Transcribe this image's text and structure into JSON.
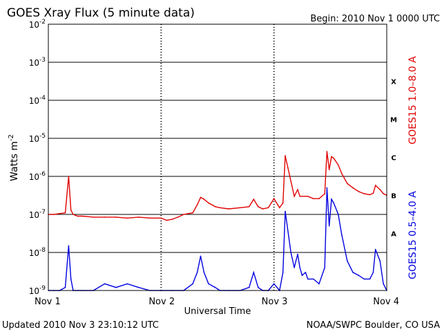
{
  "header": {
    "title": "GOES Xray Flux (5 minute data)",
    "begin": "Begin:  2010 Nov 1 0000 UTC"
  },
  "footer": {
    "updated": "Updated 2010 Nov  3 23:10:12 UTC",
    "credit": "NOAA/SWPC Boulder, CO USA"
  },
  "colors": {
    "long_channel": "#e00000",
    "short_channel": "#0000e0",
    "grid": "#000000",
    "background": "#ffffff"
  },
  "chart_data": {
    "type": "line",
    "title": "GOES Xray Flux (5 minute data)",
    "xlabel": "Universal Time",
    "ylabel": "Watts m",
    "ylabel_sup": "-2",
    "y_scale": "log",
    "ylim": [
      1e-09,
      0.01
    ],
    "xlim": [
      0,
      3
    ],
    "x_ticks": [
      {
        "value": 0,
        "label": "Nov 1"
      },
      {
        "value": 1,
        "label": "Nov 2"
      },
      {
        "value": 2,
        "label": "Nov 3"
      },
      {
        "value": 3,
        "label": "Nov 4"
      }
    ],
    "y_ticks": [
      {
        "exp": -2,
        "base": "10",
        "sup": "-2"
      },
      {
        "exp": -3,
        "base": "10",
        "sup": "-3"
      },
      {
        "exp": -4,
        "base": "10",
        "sup": "-4"
      },
      {
        "exp": -5,
        "base": "10",
        "sup": "-5"
      },
      {
        "exp": -6,
        "base": "10",
        "sup": "-6"
      },
      {
        "exp": -7,
        "base": "10",
        "sup": "-7"
      },
      {
        "exp": -8,
        "base": "10",
        "sup": "-8"
      },
      {
        "exp": -9,
        "base": "10",
        "sup": "-9"
      }
    ],
    "flare_classes": [
      {
        "label": "X",
        "exp": -3.5
      },
      {
        "label": "M",
        "exp": -4.5
      },
      {
        "label": "C",
        "exp": -5.5
      },
      {
        "label": "B",
        "exp": -6.5
      },
      {
        "label": "A",
        "exp": -7.5
      }
    ],
    "grid": true,
    "series": [
      {
        "name": "GOES15 1.0–8.0 A",
        "color": "#e00000",
        "x": [
          0,
          0.05,
          0.1,
          0.15,
          0.18,
          0.2,
          0.22,
          0.26,
          0.3,
          0.4,
          0.5,
          0.6,
          0.7,
          0.8,
          0.9,
          1.0,
          1.05,
          1.1,
          1.15,
          1.2,
          1.28,
          1.32,
          1.35,
          1.38,
          1.42,
          1.48,
          1.52,
          1.6,
          1.7,
          1.78,
          1.82,
          1.86,
          1.9,
          1.95,
          2.0,
          2.05,
          2.08,
          2.1,
          2.15,
          2.18,
          2.21,
          2.23,
          2.25,
          2.28,
          2.3,
          2.35,
          2.4,
          2.45,
          2.47,
          2.49,
          2.51,
          2.53,
          2.57,
          2.6,
          2.65,
          2.7,
          2.75,
          2.8,
          2.85,
          2.88,
          2.9,
          2.94,
          2.97,
          3.0
        ],
        "values": [
          1e-07,
          1e-07,
          1.05e-07,
          1.1e-07,
          1e-06,
          1.3e-07,
          1e-07,
          9e-08,
          9e-08,
          8.5e-08,
          8.5e-08,
          8.5e-08,
          8e-08,
          8.5e-08,
          8e-08,
          8e-08,
          7e-08,
          7.5e-08,
          8.5e-08,
          1e-07,
          1.1e-07,
          1.8e-07,
          2.8e-07,
          2.5e-07,
          2e-07,
          1.6e-07,
          1.5e-07,
          1.4e-07,
          1.5e-07,
          1.6e-07,
          2.5e-07,
          1.6e-07,
          1.4e-07,
          1.5e-07,
          2.6e-07,
          1.5e-07,
          2e-07,
          3.5e-06,
          7.5e-07,
          3e-07,
          4.5e-07,
          3e-07,
          3e-07,
          3e-07,
          3e-07,
          2.6e-07,
          2.6e-07,
          3.5e-07,
          4.5e-06,
          1.5e-06,
          3.3e-06,
          3e-06,
          2e-06,
          1.2e-06,
          6.5e-07,
          5e-07,
          4e-07,
          3.5e-07,
          3.3e-07,
          3.6e-07,
          5.8e-07,
          4.5e-07,
          3.5e-07,
          3.2e-07
        ]
      },
      {
        "name": "GOES15 0.5–4.0 A",
        "color": "#0000e0",
        "x": [
          0,
          0.05,
          0.1,
          0.15,
          0.18,
          0.2,
          0.22,
          0.26,
          0.3,
          0.4,
          0.5,
          0.6,
          0.7,
          0.8,
          0.9,
          1.0,
          1.1,
          1.2,
          1.28,
          1.32,
          1.35,
          1.38,
          1.42,
          1.48,
          1.52,
          1.6,
          1.7,
          1.78,
          1.82,
          1.86,
          1.9,
          1.95,
          2.0,
          2.05,
          2.08,
          2.1,
          2.15,
          2.18,
          2.21,
          2.23,
          2.25,
          2.28,
          2.3,
          2.35,
          2.4,
          2.45,
          2.47,
          2.49,
          2.51,
          2.53,
          2.57,
          2.6,
          2.65,
          2.7,
          2.75,
          2.8,
          2.85,
          2.88,
          2.9,
          2.94,
          2.97,
          3.0
        ],
        "values": [
          1e-09,
          1e-09,
          1e-09,
          1.2e-09,
          1.5e-08,
          2e-09,
          1e-09,
          1e-09,
          1e-09,
          1e-09,
          1.5e-09,
          1.2e-09,
          1.5e-09,
          1.2e-09,
          1e-09,
          1e-09,
          1e-09,
          1e-09,
          1.5e-09,
          3e-09,
          8e-09,
          3e-09,
          1.5e-09,
          1.2e-09,
          1e-09,
          1e-09,
          1e-09,
          1.2e-09,
          3e-09,
          1.2e-09,
          1e-09,
          1e-09,
          1.5e-09,
          1e-09,
          3e-09,
          1.2e-07,
          1e-08,
          4e-09,
          9e-09,
          4e-09,
          2.5e-09,
          3e-09,
          2e-09,
          2e-09,
          1.5e-09,
          4e-09,
          5e-07,
          5e-08,
          2.5e-07,
          2e-07,
          1e-07,
          3e-08,
          6e-09,
          3e-09,
          2.5e-09,
          2e-09,
          2e-09,
          3e-09,
          1.2e-08,
          6e-09,
          1.5e-09,
          1e-09
        ]
      }
    ]
  }
}
